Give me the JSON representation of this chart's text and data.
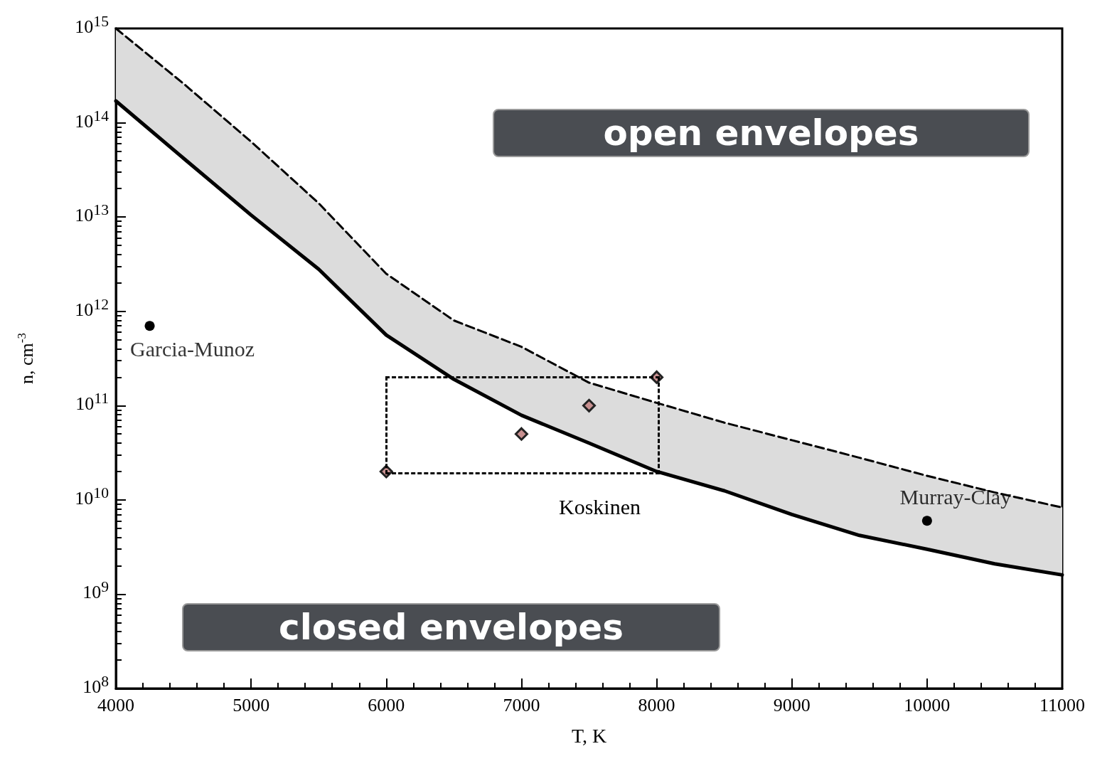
{
  "chart_data": {
    "type": "line",
    "xlabel": "T, K",
    "ylabel": "n, cm$^{-3}$",
    "log": "y",
    "grid": false,
    "xlim": [
      4000,
      11000
    ],
    "xticks": [
      4000,
      5000,
      6000,
      7000,
      8000,
      9000,
      10000,
      11000
    ],
    "ylim": [
      100000000,
      1000000000000000
    ],
    "yticks": [
      {
        "value": 100000000,
        "label": "10$^{8}$"
      },
      {
        "value": 1000000000,
        "label": "10$^{9}$"
      },
      {
        "value": 10000000000,
        "label": "10$^{10}$"
      },
      {
        "value": 100000000000,
        "label": "10$^{11}$"
      },
      {
        "value": 1000000000000,
        "label": "10$^{12}$"
      },
      {
        "value": 10000000000000,
        "label": "10$^{13}$"
      },
      {
        "value": 100000000000000,
        "label": "10$^{14}$"
      },
      {
        "value": 1000000000000000,
        "label": "10$^{15}$"
      }
    ],
    "series": [
      {
        "color": "#000000",
        "line_style": "solid",
        "marker": "none",
        "x": [
          4000,
          4500,
          5000,
          5500,
          6000,
          6500,
          7000,
          7500,
          8000,
          8500,
          9000,
          9500,
          10000,
          10500,
          11000
        ],
        "values": [
          170000000000000.0,
          42000000000000.0,
          10500000000000.0,
          2800000000000.0,
          560000000000.0,
          190000000000.0,
          79000000000.0,
          40000000000.0,
          20000000000.0,
          12500000000.0,
          7000000000.0,
          4200000000.0,
          3000000000.0,
          2100000000.0,
          1600000000.0
        ]
      },
      {
        "color": "#000000",
        "line_style": "dashed",
        "marker": "none",
        "x": [
          4000,
          4500,
          5000,
          5500,
          6000,
          6500,
          7000,
          7500,
          8000,
          8500,
          9000,
          9500,
          10000,
          10500,
          11000
        ],
        "values": [
          1000000000000000.0,
          260000000000000.0,
          63000000000000.0,
          14000000000000.0,
          2500000000000.0,
          800000000000.0,
          420000000000.0,
          175000000000.0,
          107000000000.0,
          66000000000.0,
          43000000000.0,
          28000000000.0,
          18000000000.0,
          12000000000.0,
          8300000000.0
        ],
        "lower": [
          170000000000000.0,
          42000000000000.0,
          10500000000000.0,
          2800000000000.0,
          560000000000.0,
          190000000000.0,
          79000000000.0,
          40000000000.0,
          20000000000.0,
          12500000000.0,
          7000000000.0,
          4200000000.0,
          3000000000.0,
          2100000000.0,
          1600000000.0
        ],
        "upper": [
          1000000000000000.0,
          260000000000000.0,
          63000000000000.0,
          14000000000000.0,
          2500000000000.0,
          800000000000.0,
          420000000000.0,
          175000000000.0,
          107000000000.0,
          66000000000.0,
          43000000000.0,
          28000000000.0,
          18000000000.0,
          12000000000.0,
          8300000000.0
        ]
      },
      {
        "type": "scatter",
        "color": "#000000",
        "marker": "circle",
        "x": [
          4250
        ],
        "values": [
          700000000000.0
        ]
      },
      {
        "type": "scatter",
        "color": "#c89090",
        "marker": "diamond",
        "x": [
          6000,
          7000,
          7500,
          8000
        ],
        "values": [
          20000000000.0,
          50000000000.0,
          100000000000.0,
          200000000000.0
        ]
      },
      {
        "type": "scatter",
        "color": "#000000",
        "marker": "circle",
        "x": [
          10000
        ],
        "values": [
          6000000000.0
        ]
      }
    ],
    "annotations": [
      "open envelopes",
      "closed envelopes",
      {
        "text": "Garcia-Munoz",
        "x": 4250,
        "y": 700000000000.0
      },
      "Koskinen",
      {
        "text": "Murray-Clay",
        "x": 10000,
        "y": 6000000000.0
      }
    ]
  }
}
